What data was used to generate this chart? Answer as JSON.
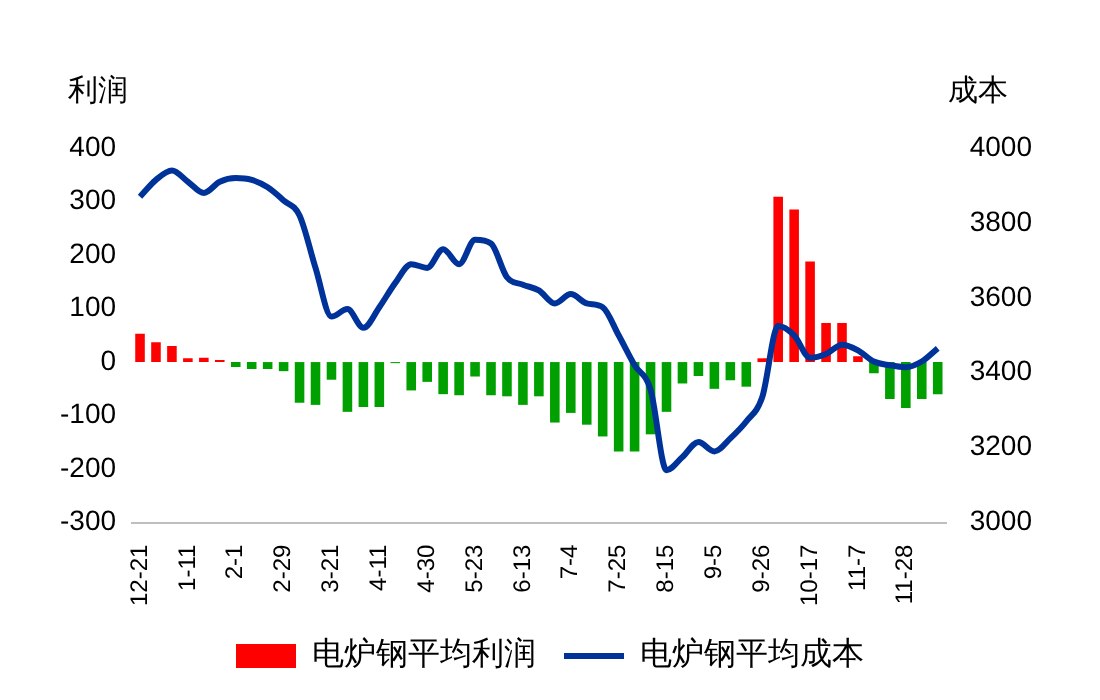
{
  "chart_data": {
    "type": "bar",
    "ylabel": "利润",
    "y2label": "成本",
    "categories": [
      "12-21",
      null,
      null,
      "1-11",
      null,
      null,
      "2-1",
      null,
      null,
      "2-29",
      null,
      null,
      "3-21",
      null,
      null,
      "4-11",
      null,
      null,
      "4-30",
      null,
      null,
      "5-23",
      null,
      null,
      "6-13",
      null,
      null,
      "7-4",
      null,
      null,
      "7-25",
      null,
      null,
      "8-15",
      null,
      null,
      "9-5",
      null,
      null,
      "9-26",
      null,
      null,
      "10-17",
      null,
      null,
      "11-7",
      null,
      null,
      "11-28",
      null,
      null
    ],
    "series": [
      {
        "name": "电炉钢平均利润",
        "color": "#ff0000",
        "colors": [
          "#ff0000",
          "#ff0000",
          "#ff0000",
          "#ff0000",
          "#ff0000",
          "#ff0000",
          "#00a000",
          "#00a000",
          "#00a000",
          "#00a000",
          "#00a000",
          "#00a000",
          "#00a000",
          "#00a000",
          "#00a000",
          "#00a000",
          "#00a000",
          "#00a000",
          "#00a000",
          "#00a000",
          "#00a000",
          "#00a000",
          "#00a000",
          "#00a000",
          "#00a000",
          "#00a000",
          "#00a000",
          "#00a000",
          "#00a000",
          "#00a000",
          "#00a000",
          "#00a000",
          "#00a000",
          "#00a000",
          "#00a000",
          "#00a000",
          "#00a000",
          "#00a000",
          "#00a000",
          "#ff0000",
          "#ff0000",
          "#ff0000",
          "#ff0000",
          "#ff0000",
          "#ff0000",
          "#ff0000",
          "#00a000",
          "#00a000",
          "#00a000",
          "#00a000",
          "#00a000"
        ],
        "values": [
          53,
          37,
          30,
          7,
          8,
          4,
          -9,
          -13,
          -13,
          -17,
          -76,
          -80,
          -33,
          -93,
          -84,
          -84,
          -2,
          -53,
          -37,
          -60,
          -62,
          -27,
          -62,
          -64,
          -80,
          -64,
          -113,
          -95,
          -117,
          -139,
          -167,
          -167,
          -135,
          -93,
          -40,
          -26,
          -50,
          -34,
          -46,
          7,
          309,
          285,
          188,
          73,
          73,
          11,
          -21,
          -69,
          -86,
          -69,
          -60
        ]
      },
      {
        "name": "电炉钢平均成本",
        "type": "line",
        "axis": "y2",
        "color": "#003399",
        "values": [
          3870,
          3915,
          3940,
          3910,
          3880,
          3910,
          3920,
          3915,
          3895,
          3860,
          3820,
          3680,
          3550,
          3570,
          3520,
          3575,
          3640,
          3690,
          3680,
          3730,
          3690,
          3755,
          3745,
          3655,
          3635,
          3620,
          3585,
          3610,
          3585,
          3575,
          3500,
          3420,
          3355,
          3140,
          3175,
          3215,
          3190,
          3225,
          3270,
          3335,
          3525,
          3500,
          3440,
          3450,
          3475,
          3460,
          3430,
          3420,
          3415,
          3430,
          3465
        ]
      }
    ],
    "ylim": [
      -300,
      400
    ],
    "yticks": [
      -300,
      -200,
      -100,
      0,
      100,
      200,
      300,
      400
    ],
    "y2lim": [
      3000,
      4000
    ],
    "y2ticks": [
      3000,
      3200,
      3400,
      3600,
      3800,
      4000
    ],
    "grid": false,
    "legend": "bottom",
    "marker": "none",
    "line_style": "solid"
  }
}
